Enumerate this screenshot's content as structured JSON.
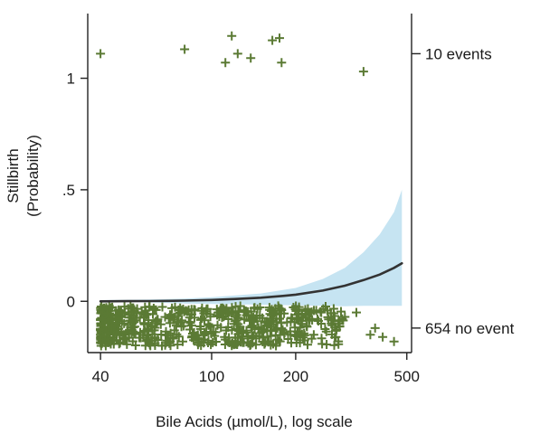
{
  "chart_data": {
    "type": "scatter",
    "title": "",
    "xlabel": "Bile Acids (µmol/L), log scale",
    "ylabel_lines": [
      "Stillbirth",
      "(Probability)"
    ],
    "x_scale": "log",
    "xlim": [
      36,
      520
    ],
    "ylim": [
      -0.23,
      1.29
    ],
    "x_ticks": [
      {
        "value": 40,
        "label": "40"
      },
      {
        "value": 100,
        "label": "100"
      },
      {
        "value": 200,
        "label": "200"
      },
      {
        "value": 500,
        "label": "500"
      }
    ],
    "y_ticks": [
      {
        "value": 0,
        "label": "0"
      },
      {
        "value": 0.5,
        "label": ".5"
      },
      {
        "value": 1,
        "label": "1"
      }
    ],
    "right_axis_ticks": [
      {
        "value": 1.11,
        "label": "10 events"
      },
      {
        "value": -0.12,
        "label": "654 no event"
      }
    ],
    "colors": {
      "points": "#5b7a34",
      "curve": "#333333",
      "ci_band": "#c6e4f2",
      "axis": "#222222"
    },
    "series": [
      {
        "name": "fitted probability",
        "kind": "line",
        "x": [
          40,
          50,
          60,
          70,
          80,
          100,
          120,
          150,
          180,
          200,
          250,
          300,
          350,
          400,
          450,
          480
        ],
        "y": [
          0.0,
          0.0005,
          0.001,
          0.002,
          0.003,
          0.006,
          0.01,
          0.016,
          0.024,
          0.03,
          0.048,
          0.07,
          0.095,
          0.12,
          0.15,
          0.17
        ]
      },
      {
        "name": "95% CI",
        "kind": "band",
        "x": [
          40,
          60,
          80,
          100,
          150,
          200,
          250,
          300,
          350,
          400,
          450,
          480
        ],
        "lower": [
          0.0,
          -0.005,
          -0.01,
          -0.012,
          -0.015,
          -0.018,
          -0.02,
          -0.022,
          -0.02,
          -0.02,
          -0.02,
          -0.02
        ],
        "upper": [
          0.005,
          0.008,
          0.012,
          0.018,
          0.035,
          0.06,
          0.1,
          0.15,
          0.22,
          0.3,
          0.4,
          0.5
        ]
      },
      {
        "name": "stillbirth events",
        "kind": "points",
        "points": [
          [
            40,
            1.11
          ],
          [
            80,
            1.13
          ],
          [
            112,
            1.07
          ],
          [
            118,
            1.19
          ],
          [
            124,
            1.11
          ],
          [
            138,
            1.09
          ],
          [
            165,
            1.17
          ],
          [
            175,
            1.18
          ],
          [
            178,
            1.07
          ],
          [
            350,
            1.03
          ]
        ]
      },
      {
        "name": "no event",
        "kind": "jittered_points",
        "count": 654,
        "y_range": [
          -0.2,
          -0.02
        ],
        "x_range": [
          40,
          480
        ],
        "outliers": [
          [
            300,
            -0.07
          ],
          [
            330,
            -0.05
          ],
          [
            370,
            -0.15
          ],
          [
            385,
            -0.12
          ],
          [
            410,
            -0.16
          ],
          [
            450,
            -0.18
          ]
        ]
      }
    ]
  }
}
